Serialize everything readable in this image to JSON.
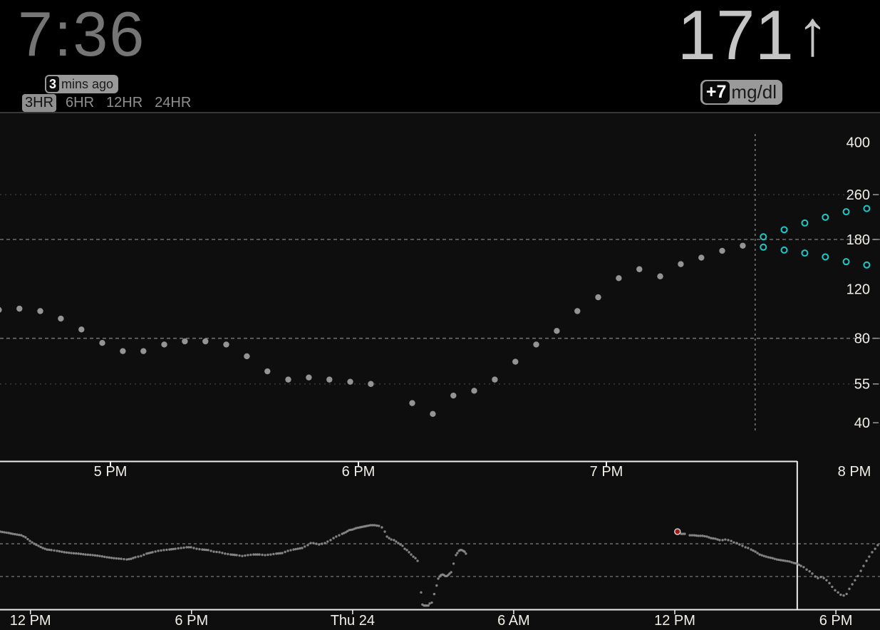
{
  "header": {
    "clock": "7:36",
    "reading_age": {
      "minutes": "3",
      "label": "mins ago"
    },
    "range_buttons": [
      {
        "label": "3HR",
        "active": true
      },
      {
        "label": "6HR",
        "active": false
      },
      {
        "label": "12HR",
        "active": false
      },
      {
        "label": "24HR",
        "active": false
      }
    ],
    "current": {
      "value": "171",
      "arrow": "↑",
      "trend": "single-up",
      "delta": "+7",
      "units": "mg/dl"
    }
  },
  "colors": {
    "background": "#000000",
    "panel": "#0e0e0e",
    "clock_gray": "#757575",
    "bg_value_gray": "#c5c5c5",
    "pill_gray": "#9a9a9a",
    "dot_gray": "#9c9c9c",
    "context_dot_gray": "#8f8f8f",
    "prediction_cyan": "#1fc7c7",
    "marker_red": "#a01818",
    "axis_white": "#ededed",
    "label_white": "#f2efe9",
    "grid_bright": "#6e6e6e",
    "grid_faint": "#3a3a3a",
    "now_line": "#8a8a8a"
  },
  "chart_data": [
    {
      "type": "scatter",
      "name": "focus-chart-3hr",
      "x_unit": "hour_of_day",
      "x_range_hours": [
        16.55,
        20.1
      ],
      "y_scale": "log",
      "y_domain_approx": [
        30,
        475
      ],
      "y_ticks": [
        {
          "v": 400,
          "tick": false
        },
        {
          "v": 260,
          "tick": true
        },
        {
          "v": 180,
          "tick": true
        },
        {
          "v": 120,
          "tick": false
        },
        {
          "v": 80,
          "tick": true
        },
        {
          "v": 55,
          "tick": true
        },
        {
          "v": 40,
          "tick": true
        }
      ],
      "gridlines_bright": [
        180,
        80
      ],
      "gridlines_faint": [
        260,
        55
      ],
      "x_ticks": [
        {
          "t": 17,
          "label": "5 PM",
          "tick": true
        },
        {
          "t": 18,
          "label": "6 PM",
          "tick": true
        },
        {
          "t": 19,
          "label": "7 PM",
          "tick": true
        },
        {
          "t": 20,
          "label": "8 PM",
          "tick": false
        }
      ],
      "now": {
        "t": 19.6,
        "clock": "7:36"
      },
      "series": [
        {
          "name": "cgm_history",
          "style": "filled_gray",
          "points": [
            [
              16.55,
              101
            ],
            [
              16.633,
              102
            ],
            [
              16.717,
              100
            ],
            [
              16.8,
              94
            ],
            [
              16.883,
              86
            ],
            [
              16.967,
              77
            ],
            [
              17.05,
              72
            ],
            [
              17.133,
              72
            ],
            [
              17.217,
              76
            ],
            [
              17.3,
              78
            ],
            [
              17.383,
              78
            ],
            [
              17.467,
              76
            ],
            [
              17.55,
              69
            ],
            [
              17.633,
              61
            ],
            [
              17.717,
              57
            ],
            [
              17.8,
              58
            ],
            [
              17.883,
              57
            ],
            [
              17.967,
              56
            ],
            [
              18.05,
              55
            ],
            [
              18.217,
              47
            ],
            [
              18.3,
              43
            ],
            [
              18.383,
              50
            ],
            [
              18.467,
              52
            ],
            [
              18.55,
              57
            ],
            [
              18.633,
              66
            ],
            [
              18.717,
              76
            ],
            [
              18.8,
              85
            ],
            [
              18.883,
              100
            ],
            [
              18.967,
              112
            ],
            [
              19.05,
              131
            ],
            [
              19.133,
              141
            ],
            [
              19.217,
              133
            ],
            [
              19.3,
              147
            ],
            [
              19.383,
              155
            ],
            [
              19.467,
              164
            ],
            [
              19.55,
              171
            ]
          ]
        },
        {
          "name": "prediction_upper",
          "style": "open_cyan",
          "points": [
            [
              19.633,
              184
            ],
            [
              19.717,
              195
            ],
            [
              19.8,
              206
            ],
            [
              19.883,
              216
            ],
            [
              19.967,
              226
            ],
            [
              20.05,
              232
            ]
          ]
        },
        {
          "name": "prediction_lower",
          "style": "open_cyan",
          "points": [
            [
              19.633,
              169
            ],
            [
              19.717,
              165
            ],
            [
              19.8,
              161
            ],
            [
              19.883,
              156
            ],
            [
              19.967,
              150
            ],
            [
              20.05,
              146
            ]
          ]
        }
      ]
    },
    {
      "type": "scatter-line",
      "name": "context-chart-48h",
      "x_unit": "hours_since_wed_midnight",
      "x_range_hours": [
        10.87,
        43.64
      ],
      "y_scale": "log",
      "gridlines": [
        180,
        80
      ],
      "x_ticks": [
        {
          "t": 12,
          "label": "12 PM"
        },
        {
          "t": 18,
          "label": "6 PM"
        },
        {
          "t": 24,
          "label": "Thu 24"
        },
        {
          "t": 30,
          "label": "6 AM"
        },
        {
          "t": 36,
          "label": "12 PM"
        },
        {
          "t": 42,
          "label": "6 PM"
        }
      ],
      "focus_window_start_t": 40.56,
      "marker": {
        "t": 36.1,
        "v": 243,
        "type": "red-circle"
      },
      "segments": [
        [
          [
            10.87,
            243
          ],
          [
            11.03,
            239
          ],
          [
            11.19,
            235
          ],
          [
            11.34,
            230
          ],
          [
            11.5,
            226
          ],
          [
            11.66,
            222
          ],
          [
            11.82,
            211
          ],
          [
            11.98,
            193
          ],
          [
            12.14,
            180
          ],
          [
            12.3,
            171
          ],
          [
            12.46,
            162
          ],
          [
            12.62,
            156
          ],
          [
            12.78,
            154
          ],
          [
            12.99,
            151
          ],
          [
            13.26,
            146
          ],
          [
            13.52,
            143
          ],
          [
            13.79,
            141
          ],
          [
            14.05,
            138
          ],
          [
            14.32,
            136
          ],
          [
            14.58,
            133
          ],
          [
            14.85,
            129
          ],
          [
            15.11,
            126
          ],
          [
            15.38,
            124
          ],
          [
            15.59,
            122
          ],
          [
            15.75,
            124
          ],
          [
            15.91,
            129
          ],
          [
            16.12,
            133
          ],
          [
            16.33,
            141
          ],
          [
            16.55,
            146
          ],
          [
            16.76,
            151
          ],
          [
            16.97,
            154
          ],
          [
            17.18,
            156
          ],
          [
            17.4,
            159
          ],
          [
            17.61,
            162
          ],
          [
            17.82,
            165
          ],
          [
            17.98,
            165
          ],
          [
            18.19,
            159
          ],
          [
            18.4,
            156
          ],
          [
            18.62,
            154
          ],
          [
            18.83,
            148
          ],
          [
            19.04,
            146
          ],
          [
            19.25,
            141
          ],
          [
            19.46,
            138
          ],
          [
            19.68,
            136
          ],
          [
            19.89,
            133
          ],
          [
            20.1,
            136
          ],
          [
            20.31,
            138
          ],
          [
            20.53,
            138
          ],
          [
            20.74,
            136
          ],
          [
            20.95,
            138
          ],
          [
            21.16,
            141
          ],
          [
            21.38,
            143
          ],
          [
            21.59,
            151
          ],
          [
            21.8,
            156
          ],
          [
            21.96,
            159
          ],
          [
            22.12,
            162
          ],
          [
            22.22,
            168
          ],
          [
            22.33,
            174
          ],
          [
            22.44,
            183
          ],
          [
            22.54,
            183
          ],
          [
            22.65,
            180
          ],
          [
            22.75,
            177
          ],
          [
            22.86,
            180
          ],
          [
            22.97,
            183
          ],
          [
            23.07,
            190
          ],
          [
            23.18,
            197
          ],
          [
            23.29,
            207
          ],
          [
            23.39,
            215
          ],
          [
            23.5,
            222
          ],
          [
            23.61,
            230
          ],
          [
            23.74,
            239
          ],
          [
            23.87,
            252
          ],
          [
            24.0,
            256
          ],
          [
            24.13,
            265
          ],
          [
            24.27,
            270
          ],
          [
            24.4,
            275
          ],
          [
            24.53,
            280
          ],
          [
            24.67,
            285
          ],
          [
            24.82,
            285
          ],
          [
            24.98,
            280
          ],
          [
            25.09,
            270
          ],
          [
            25.2,
            243
          ],
          [
            25.28,
            215
          ],
          [
            25.36,
            207
          ],
          [
            25.44,
            200
          ],
          [
            25.54,
            197
          ],
          [
            25.62,
            190
          ],
          [
            25.7,
            183
          ],
          [
            25.78,
            177
          ],
          [
            25.86,
            171
          ],
          [
            25.94,
            159
          ],
          [
            26.02,
            154
          ],
          [
            26.1,
            146
          ],
          [
            26.18,
            138
          ],
          [
            26.26,
            131
          ],
          [
            26.34,
            126
          ],
          [
            26.42,
            118
          ]
        ],
        [
          [
            26.55,
            54
          ],
          [
            26.6,
            40
          ],
          [
            26.66,
            39
          ],
          [
            26.71,
            39
          ],
          [
            26.76,
            39
          ],
          [
            26.82,
            39
          ],
          [
            26.87,
            41
          ],
          [
            26.95,
            42
          ],
          [
            27.13,
            64
          ],
          [
            27.19,
            76
          ],
          [
            27.24,
            80
          ],
          [
            27.29,
            83
          ],
          [
            27.35,
            84
          ],
          [
            27.4,
            83
          ],
          [
            27.45,
            81
          ],
          [
            27.51,
            81
          ],
          [
            27.56,
            83
          ],
          [
            27.61,
            86
          ],
          [
            27.67,
            89
          ],
          [
            27.85,
            136
          ],
          [
            27.9,
            143
          ],
          [
            27.96,
            151
          ],
          [
            28.01,
            154
          ],
          [
            28.06,
            154
          ],
          [
            28.12,
            151
          ],
          [
            28.17,
            148
          ],
          [
            28.22,
            141
          ]
        ],
        [
          [
            36.24,
            230
          ],
          [
            36.37,
            230
          ]
        ],
        [
          [
            36.56,
            222
          ],
          [
            36.72,
            222
          ],
          [
            36.87,
            219
          ],
          [
            37.03,
            219
          ],
          [
            37.19,
            215
          ],
          [
            37.35,
            207
          ],
          [
            37.51,
            204
          ],
          [
            37.67,
            197
          ],
          [
            37.78,
            197
          ],
          [
            37.88,
            200
          ],
          [
            37.99,
            197
          ],
          [
            38.1,
            193
          ],
          [
            38.2,
            186
          ],
          [
            38.31,
            183
          ],
          [
            38.41,
            177
          ],
          [
            38.52,
            171
          ],
          [
            38.63,
            165
          ],
          [
            38.73,
            162
          ],
          [
            38.84,
            156
          ],
          [
            39.0,
            148
          ],
          [
            39.16,
            138
          ],
          [
            39.32,
            133
          ],
          [
            39.48,
            129
          ],
          [
            39.64,
            126
          ],
          [
            39.8,
            122
          ],
          [
            39.95,
            120
          ],
          [
            40.11,
            118
          ],
          [
            40.27,
            116
          ],
          [
            40.43,
            112
          ],
          [
            40.56,
            110
          ],
          [
            40.7,
            104
          ],
          [
            40.8,
            101
          ],
          [
            40.91,
            95
          ],
          [
            41.02,
            91
          ],
          [
            41.12,
            86
          ],
          [
            41.23,
            80
          ],
          [
            41.33,
            77
          ],
          [
            41.44,
            79
          ],
          [
            41.55,
            77
          ],
          [
            41.65,
            73
          ],
          [
            41.76,
            68
          ],
          [
            41.86,
            62
          ],
          [
            41.97,
            57
          ],
          [
            42.08,
            54
          ],
          [
            42.18,
            51
          ],
          [
            42.29,
            50
          ],
          [
            42.4,
            52
          ],
          [
            42.5,
            59
          ],
          [
            42.61,
            66
          ],
          [
            42.71,
            73
          ],
          [
            42.82,
            81
          ],
          [
            42.93,
            92
          ],
          [
            43.03,
            104
          ],
          [
            43.14,
            118
          ],
          [
            43.24,
            131
          ],
          [
            43.35,
            146
          ],
          [
            43.46,
            159
          ],
          [
            43.56,
            174
          ]
        ]
      ]
    }
  ]
}
